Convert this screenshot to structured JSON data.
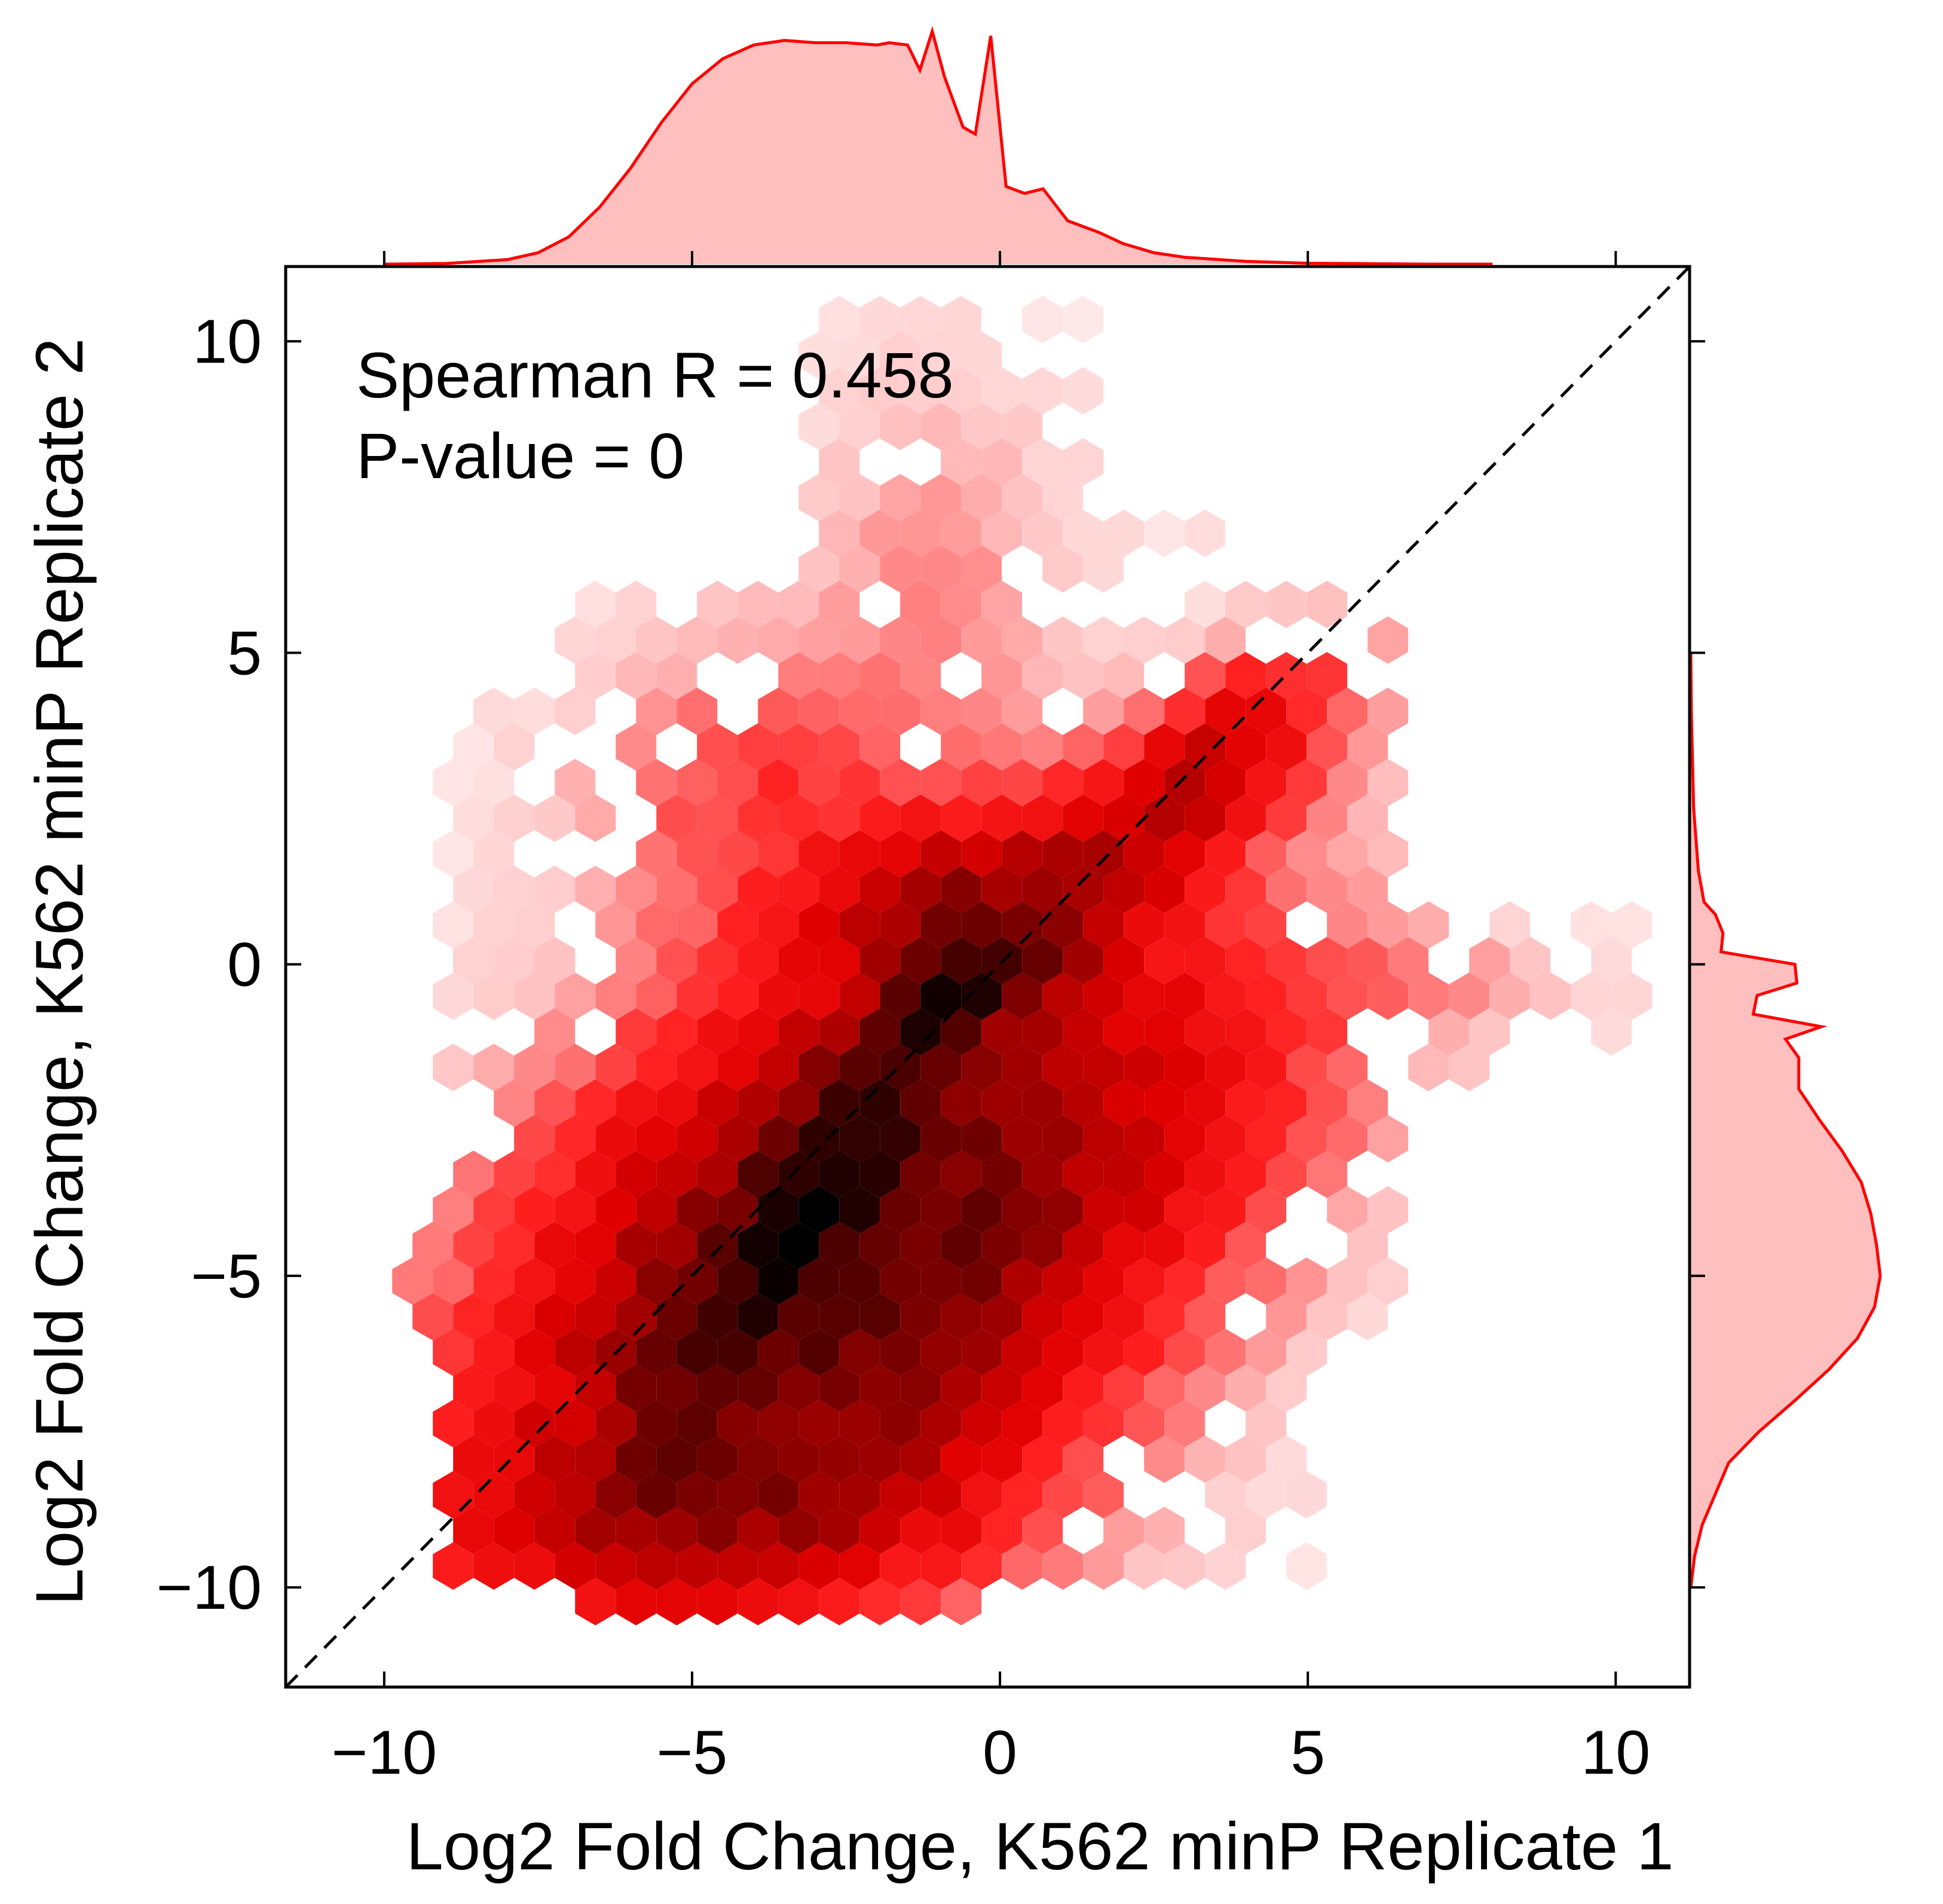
{
  "chart_data": {
    "type": "hexbin",
    "title": "",
    "xlabel": "Log2 Fold Change, K562 minP Replicate 1",
    "ylabel": "Log2 Fold Change, K562 minP Replicate 2",
    "xlim": [
      -11.6,
      11.2
    ],
    "ylim": [
      -11.6,
      11.2
    ],
    "x_ticks": [
      -10,
      -5,
      0,
      5,
      10
    ],
    "y_ticks": [
      -10,
      -5,
      0,
      5,
      10
    ],
    "x_tick_labels": [
      "−10",
      "−5",
      "0",
      "5",
      "10"
    ],
    "y_tick_labels": [
      "−10",
      "−5",
      "0",
      "5",
      "10"
    ],
    "annotation": {
      "line1": "Spearman R = 0.458",
      "line2": "P-value = 0"
    },
    "spearman_r": 0.458,
    "p_value": 0,
    "identity_line": true,
    "grid": false,
    "color": "#ff0000",
    "marginal_fill_color": "#ffbfbf",
    "marginal_x": {
      "x": [
        -10,
        -9,
        -8,
        -7.5,
        -7,
        -6.5,
        -6,
        -5.5,
        -5,
        -4.5,
        -4,
        -3.5,
        -3,
        -2.5,
        -2,
        -1.8,
        -1.5,
        -1.3,
        -1.1,
        -0.9,
        -0.6,
        -0.4,
        -0.15,
        0.1,
        0.4,
        0.7,
        1.1,
        1.3,
        1.6,
        2,
        2.5,
        3,
        4,
        5,
        6,
        7,
        8
      ],
      "density": [
        0.0,
        0.003,
        0.02,
        0.05,
        0.12,
        0.25,
        0.42,
        0.62,
        0.79,
        0.9,
        0.96,
        0.98,
        0.97,
        0.97,
        0.96,
        0.97,
        0.96,
        0.85,
        1.02,
        0.82,
        0.6,
        0.57,
        1.0,
        0.34,
        0.31,
        0.33,
        0.19,
        0.17,
        0.14,
        0.09,
        0.05,
        0.03,
        0.012,
        0.004,
        0.002,
        0.0,
        0.0
      ]
    },
    "marginal_y": {
      "y": [
        -10,
        -9.5,
        -9,
        -8,
        -7.5,
        -7,
        -6.5,
        -6,
        -5.5,
        -5,
        -4.5,
        -4,
        -3.5,
        -3,
        -2.5,
        -2,
        -1.5,
        -1.2,
        -1.0,
        -0.8,
        -0.5,
        -0.3,
        0.0,
        0.2,
        0.5,
        0.8,
        1.0,
        1.5,
        2.5,
        4,
        5
      ],
      "density": [
        0.0,
        0.02,
        0.06,
        0.2,
        0.36,
        0.55,
        0.73,
        0.88,
        0.97,
        1.0,
        0.98,
        0.95,
        0.9,
        0.8,
        0.68,
        0.57,
        0.57,
        0.5,
        0.69,
        0.33,
        0.35,
        0.56,
        0.55,
        0.16,
        0.17,
        0.13,
        0.07,
        0.04,
        0.015,
        0.003,
        0.0
      ]
    }
  }
}
